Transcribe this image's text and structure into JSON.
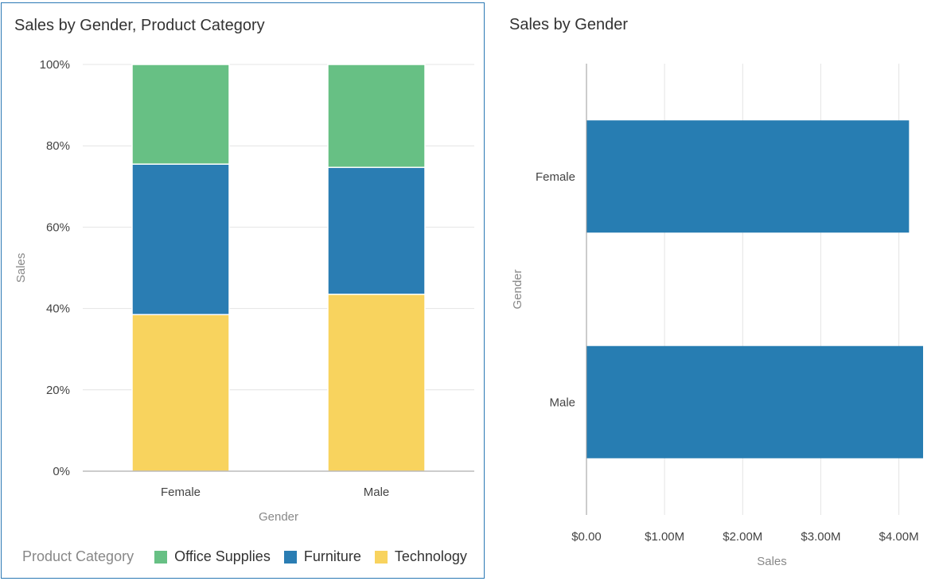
{
  "chart_data": [
    {
      "type": "bar",
      "stacked": true,
      "normalized": true,
      "title": "Sales by Gender, Product Category",
      "categories": [
        "Female",
        "Male"
      ],
      "series": [
        {
          "name": "Technology",
          "values": [
            38.5,
            43.5
          ],
          "color": "#f8d35e"
        },
        {
          "name": "Furniture",
          "values": [
            37.0,
            31.2
          ],
          "color": "#2a7db3"
        },
        {
          "name": "Office Supplies",
          "values": [
            24.5,
            25.3
          ],
          "color": "#67c084"
        }
      ],
      "xlabel": "Gender",
      "ylabel": "Sales",
      "ylim": [
        0,
        100
      ],
      "yticks": [
        "0%",
        "20%",
        "40%",
        "60%",
        "80%",
        "100%"
      ],
      "legend": {
        "title": "Product Category",
        "entries": [
          "Office Supplies",
          "Furniture",
          "Technology"
        ],
        "placement": "bottom"
      },
      "grid": true
    },
    {
      "type": "bar",
      "orientation": "horizontal",
      "title": "Sales by Gender",
      "categories": [
        "Female",
        "Male"
      ],
      "values": [
        4130000,
        4310000
      ],
      "color": "#277db2",
      "xlabel": "Sales",
      "ylabel": "Gender",
      "xlim": [
        0,
        4310000
      ],
      "xticks": [
        "$0.00",
        "$1.00M",
        "$2.00M",
        "$3.00M",
        "$4.00M"
      ],
      "grid": true
    }
  ]
}
